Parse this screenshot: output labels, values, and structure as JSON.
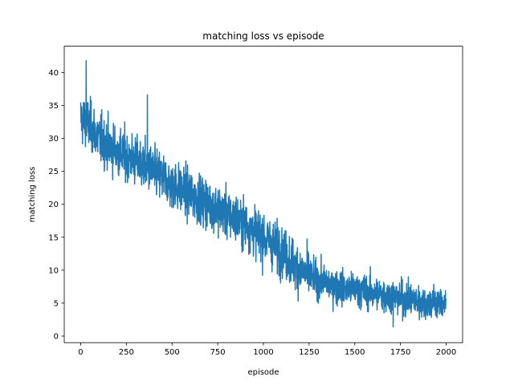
{
  "chart_data": {
    "type": "line",
    "title": "matching loss vs episode",
    "xlabel": "episode",
    "ylabel": "matching loss",
    "xlim": [
      -90,
      2090
    ],
    "ylim": [
      -1,
      44
    ],
    "x_ticks": [
      0,
      250,
      500,
      750,
      1000,
      1250,
      1500,
      1750,
      2000
    ],
    "y_ticks": [
      0,
      5,
      10,
      15,
      20,
      25,
      30,
      35,
      40
    ],
    "grid": false,
    "legend": "none",
    "series": [
      {
        "color": "#1f77b4",
        "n_points": 2000,
        "trend_x": [
          0,
          50,
          100,
          200,
          300,
          400,
          500,
          600,
          700,
          800,
          900,
          1000,
          1100,
          1200,
          1300,
          1400,
          1500,
          1600,
          1700,
          1800,
          1900,
          2000
        ],
        "trend_y": [
          33,
          32,
          30,
          28,
          26.5,
          25,
          23,
          21.5,
          20,
          18.5,
          17,
          15,
          13,
          10,
          8.5,
          7.5,
          7,
          6.5,
          6,
          5.5,
          5,
          5
        ],
        "noise_amplitude": 3.5,
        "peaks": [
          {
            "x": 30,
            "y": 41.8
          },
          {
            "x": 365,
            "y": 36.6
          },
          {
            "x": 1710,
            "y": 1.4
          }
        ]
      }
    ]
  }
}
